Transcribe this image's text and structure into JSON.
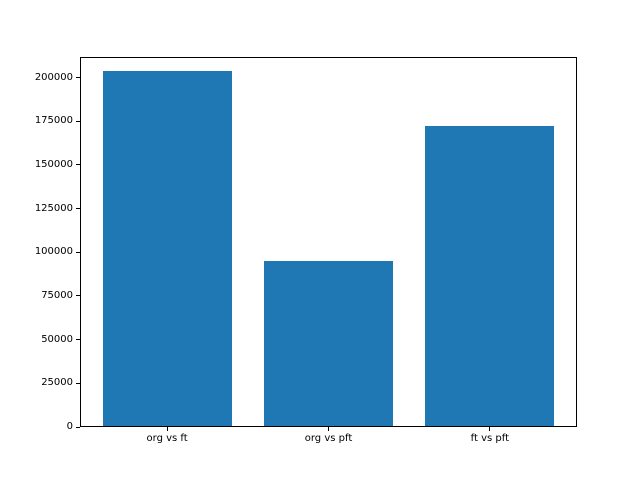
{
  "figure": {
    "background": "#ffffff"
  },
  "chart_data": {
    "type": "bar",
    "title": "",
    "xlabel": "",
    "ylabel": "",
    "categories": [
      "org vs ft",
      "org vs pft",
      "ft vs pft"
    ],
    "values": [
      203000,
      94500,
      172000
    ],
    "yticks": [
      0,
      25000,
      50000,
      75000,
      100000,
      125000,
      150000,
      175000,
      200000
    ],
    "ylim": [
      0,
      211800
    ],
    "xlim": [
      -0.54,
      2.54
    ],
    "bar_width_units": 0.8,
    "grid": false,
    "legend": null,
    "bar_color": "#1f77b4",
    "axis_color": "#000000",
    "tick_label_color": "#000000"
  }
}
